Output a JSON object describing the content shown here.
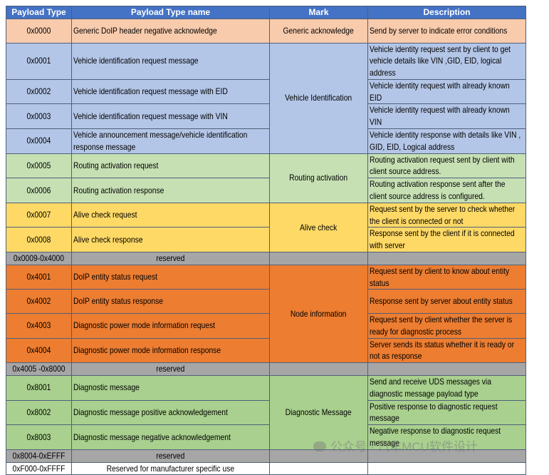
{
  "columns": [
    "Payload Type",
    "Payload Type name",
    "Mark",
    "Description"
  ],
  "groups": [
    {
      "mark": "Generic acknowledge",
      "color": "#f8cbad",
      "rows": [
        {
          "type": "0x0000",
          "name": "Generic DoIP header negative acknowledge",
          "description": "Send by server to indicate error conditions"
        }
      ]
    },
    {
      "mark": "Vehicle Identification",
      "color": "#b4c6e7",
      "rows": [
        {
          "type": "0x0001",
          "name": "Vehicle identification request message",
          "description": "Vehicle identity request sent by client to get vehicle details like VIN ,GID, EID, logical address"
        },
        {
          "type": "0x0002",
          "name": "Vehicle identification request message with EID",
          "description": "Vehicle identity request with already known EID"
        },
        {
          "type": "0x0003",
          "name": "Vehicle identification request message with VIN",
          "description": "Vehicle identity request with already known VIN"
        },
        {
          "type": "0x0004",
          "name": "Vehicle announcement message/vehicle identification response message",
          "description": "Vehicle identity response with details like VIN , GID, EID, Logical address"
        }
      ]
    },
    {
      "mark": "Routing activation",
      "color": "#c6e0b4",
      "rows": [
        {
          "type": "0x0005",
          "name": "Routing activation request",
          "description": "Routing activation request sent by client with client source address."
        },
        {
          "type": "0x0006",
          "name": "Routing activation response",
          "description": "Routing activation response sent after the client source address is configured."
        }
      ]
    },
    {
      "mark": "Alive check",
      "color": "#ffd966",
      "rows": [
        {
          "type": "0x0007",
          "name": "Alive check request",
          "description": "Request sent by the server to check whether the client is connected or not"
        },
        {
          "type": "0x0008",
          "name": "Alive check response",
          "description": "Response sent by the client if it is connected with server"
        }
      ]
    },
    {
      "color": "#a6a6a6",
      "rows": [
        {
          "type": "0x0009-0x4000",
          "name": "reserved"
        }
      ]
    },
    {
      "mark": "Node information",
      "color": "#ed7d31",
      "rows": [
        {
          "type": "0x4001",
          "name": "DoIP entity status request",
          "description": "Request sent by client to know about entity status"
        },
        {
          "type": "0x4002",
          "name": "DoIP entity status response",
          "description": "Response sent by server about entity status"
        },
        {
          "type": "0x4003",
          "name": "Diagnostic power mode information request",
          "description": "Request sent by client whether the server is ready for diagnostic process"
        },
        {
          "type": "0x4004",
          "name": "Diagnostic power mode information response",
          "description": "Server sends its status whether it is ready or not as response"
        }
      ]
    },
    {
      "color": "#a6a6a6",
      "rows": [
        {
          "type": "0x4005 -0x8000",
          "name": "reserved"
        }
      ]
    },
    {
      "mark": "Diagnostic Message",
      "color": "#a9d08e",
      "rows": [
        {
          "type": "0x8001",
          "name": "Diagnostic message",
          "description": "Send and receive UDS messages via diagnostic message payload type"
        },
        {
          "type": "0x8002",
          "name": "Diagnostic message positive acknowledgement",
          "description": "Positive response to diagnostic request message"
        },
        {
          "type": "0x8003",
          "name": "Diagnostic message negative acknowledgement",
          "description": "Negative response to diagnostic request message"
        }
      ]
    },
    {
      "color": "#a6a6a6",
      "rows": [
        {
          "type": "0x8004-0xEFFF",
          "name": "reserved"
        }
      ]
    },
    {
      "color": "#ffffff",
      "rows": [
        {
          "type": "0xF000-0xFFFF",
          "name": "Reserved for manufacturer specific use"
        }
      ]
    }
  ],
  "watermark": "公众号 · 汽车MCU软件设计"
}
